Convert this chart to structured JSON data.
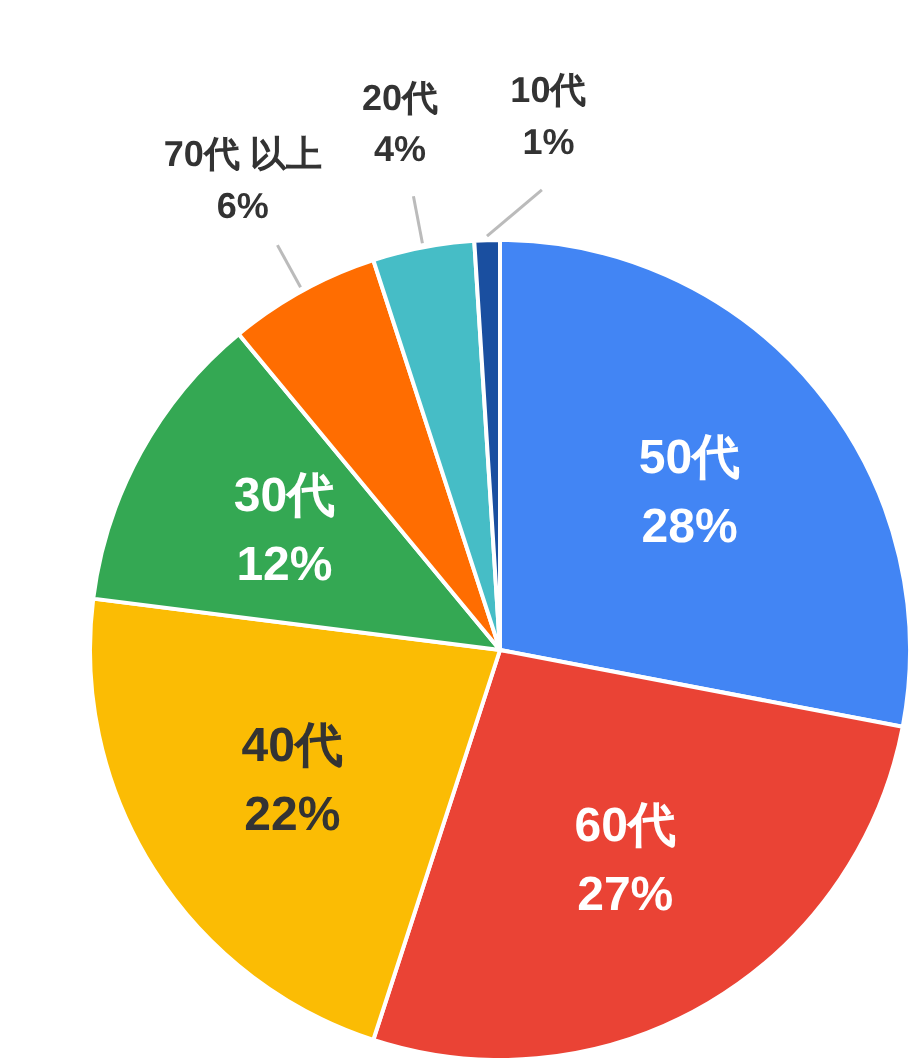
{
  "chart_data": {
    "type": "pie",
    "categories": [
      "50代",
      "60代",
      "40代",
      "30代",
      "70代 以上",
      "20代",
      "10代"
    ],
    "values": [
      28,
      27,
      22,
      12,
      6,
      4,
      1
    ],
    "colors": [
      "#4285f4",
      "#ea4335",
      "#fbbc04",
      "#34a853",
      "#ff6d01",
      "#46bdc6",
      "#1a4fa0"
    ],
    "value_labels": [
      "28%",
      "27%",
      "22%",
      "12%",
      "6%",
      "4%",
      "1%"
    ]
  }
}
